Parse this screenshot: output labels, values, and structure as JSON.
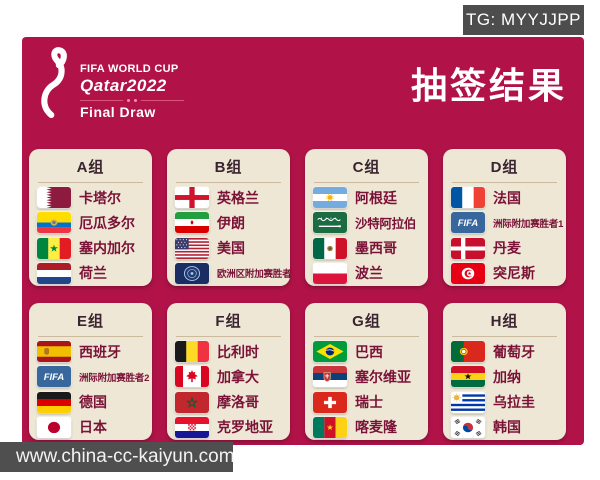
{
  "badge": {
    "text": "TG: MYYJJPP"
  },
  "header": {
    "logo": {
      "emblem_icon": "qatar2022-emblem-icon",
      "line1": "FIFA WORLD CUP",
      "line2": "Qatar2022",
      "line3": "Final Draw"
    },
    "title": "抽签结果"
  },
  "groups": [
    {
      "name": "A组",
      "teams": [
        {
          "icon": "flag-qatar",
          "label": "卡塔尔"
        },
        {
          "icon": "flag-ecuador",
          "label": "厄瓜多尔"
        },
        {
          "icon": "flag-senegal",
          "label": "塞内加尔"
        },
        {
          "icon": "flag-netherlands",
          "label": "荷兰"
        }
      ]
    },
    {
      "name": "B组",
      "teams": [
        {
          "icon": "flag-england",
          "label": "英格兰"
        },
        {
          "icon": "flag-iran",
          "label": "伊朗"
        },
        {
          "icon": "flag-usa",
          "label": "美国"
        },
        {
          "icon": "badge-uefa",
          "label": "欧洲区附加赛胜者"
        }
      ]
    },
    {
      "name": "C组",
      "teams": [
        {
          "icon": "flag-argentina",
          "label": "阿根廷"
        },
        {
          "icon": "flag-saudi-arabia",
          "label": "沙特阿拉伯"
        },
        {
          "icon": "flag-mexico",
          "label": "墨西哥"
        },
        {
          "icon": "flag-poland",
          "label": "波兰"
        }
      ]
    },
    {
      "name": "D组",
      "teams": [
        {
          "icon": "flag-france",
          "label": "法国"
        },
        {
          "icon": "badge-fifa",
          "label": "洲际附加赛胜者1"
        },
        {
          "icon": "flag-denmark",
          "label": "丹麦"
        },
        {
          "icon": "flag-tunisia",
          "label": "突尼斯"
        }
      ]
    },
    {
      "name": "E组",
      "teams": [
        {
          "icon": "flag-spain",
          "label": "西班牙"
        },
        {
          "icon": "badge-fifa",
          "label": "洲际附加赛胜者2"
        },
        {
          "icon": "flag-germany",
          "label": "德国"
        },
        {
          "icon": "flag-japan",
          "label": "日本"
        }
      ]
    },
    {
      "name": "F组",
      "teams": [
        {
          "icon": "flag-belgium",
          "label": "比利时"
        },
        {
          "icon": "flag-canada",
          "label": "加拿大"
        },
        {
          "icon": "flag-morocco",
          "label": "摩洛哥"
        },
        {
          "icon": "flag-croatia",
          "label": "克罗地亚"
        }
      ]
    },
    {
      "name": "G组",
      "teams": [
        {
          "icon": "flag-brazil",
          "label": "巴西"
        },
        {
          "icon": "flag-serbia",
          "label": "塞尔维亚"
        },
        {
          "icon": "flag-switzerland",
          "label": "瑞士"
        },
        {
          "icon": "flag-cameroon",
          "label": "喀麦隆"
        }
      ]
    },
    {
      "name": "H组",
      "teams": [
        {
          "icon": "flag-portugal",
          "label": "葡萄牙"
        },
        {
          "icon": "flag-ghana",
          "label": "加纳"
        },
        {
          "icon": "flag-uruguay",
          "label": "乌拉圭"
        },
        {
          "icon": "flag-south-korea",
          "label": "韩国"
        }
      ]
    }
  ],
  "watermark": {
    "text": "www.china-cc-kaiyun.com"
  },
  "colors": {
    "panel": "#B11348",
    "card": "#EEE7D5",
    "team_text": "#7A1237",
    "badge_bg": "#4D4D4D",
    "watermark_bg": "#4F4F4F"
  }
}
